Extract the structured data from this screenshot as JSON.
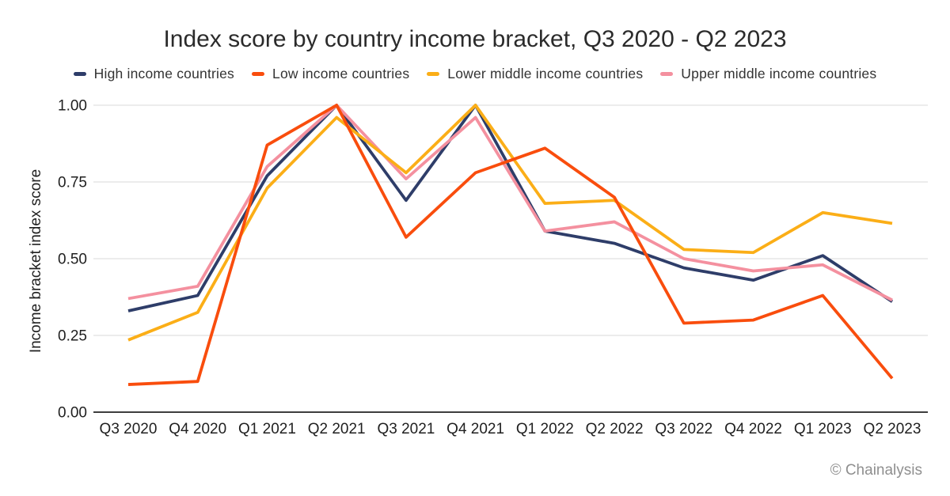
{
  "title": "Index score by country income bracket, Q3 2020 - Q2 2023",
  "copyright": "© Chainalysis",
  "chart_data": {
    "type": "line",
    "title": "Index score by country income bracket, Q3 2020 - Q2 2023",
    "xlabel": "",
    "ylabel": "Income bracket index score",
    "ylim": [
      0,
      1
    ],
    "yticks": [
      0,
      0.25,
      0.5,
      0.75,
      1
    ],
    "ytick_labels": [
      "0.00",
      "0.25",
      "0.50",
      "0.75",
      "1.00"
    ],
    "grid": "horizontal",
    "legend_position": "top",
    "categories": [
      "Q3 2020",
      "Q4 2020",
      "Q1 2021",
      "Q2 2021",
      "Q3 2021",
      "Q4 2021",
      "Q1 2022",
      "Q2 2022",
      "Q3 2022",
      "Q4 2022",
      "Q1 2023",
      "Q2 2023"
    ],
    "series": [
      {
        "name": "High income countries",
        "color": "#2E3D69",
        "values": [
          0.33,
          0.38,
          0.77,
          1.0,
          0.69,
          1.0,
          0.59,
          0.55,
          0.47,
          0.43,
          0.51,
          0.36
        ]
      },
      {
        "name": "Low income countries",
        "color": "#F94D0D",
        "values": [
          0.09,
          0.1,
          0.87,
          1.0,
          0.57,
          0.78,
          0.86,
          0.7,
          0.29,
          0.3,
          0.38,
          0.11
        ]
      },
      {
        "name": "Lower middle income countries",
        "color": "#FBAE17",
        "values": [
          0.235,
          0.325,
          0.73,
          0.96,
          0.78,
          1.0,
          0.68,
          0.69,
          0.53,
          0.52,
          0.65,
          0.615
        ]
      },
      {
        "name": "Upper middle income countries",
        "color": "#F4909F",
        "values": [
          0.37,
          0.41,
          0.8,
          1.0,
          0.76,
          0.96,
          0.59,
          0.62,
          0.5,
          0.46,
          0.48,
          0.365
        ]
      }
    ],
    "draw_order": [
      0,
      3,
      2,
      1
    ]
  }
}
